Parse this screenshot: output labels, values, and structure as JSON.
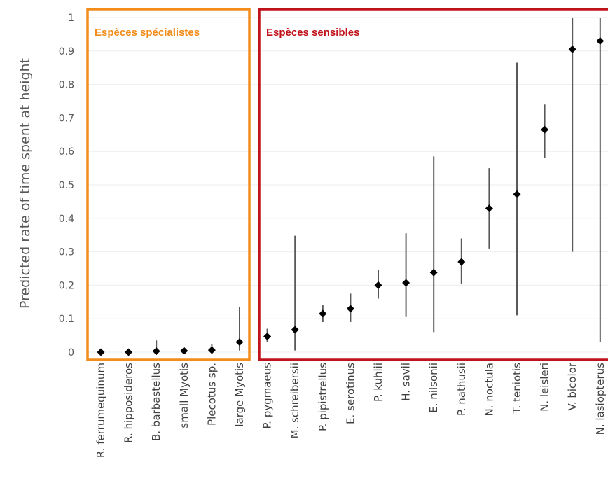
{
  "chart_data": {
    "type": "scatter",
    "title": "",
    "ylabel": "Predicted rate of time spent at height",
    "xlabel": "",
    "ylim": [
      0,
      1
    ],
    "yticks": [
      "0",
      "0.1",
      "0.2",
      "0.3",
      "0.4",
      "0.5",
      "0.6",
      "0.7",
      "0.8",
      "0.9",
      "1"
    ],
    "grid": true,
    "colors": {
      "marker": "#000000",
      "errorbar": "#595959",
      "specialist": "#F28C1A",
      "sensitive": "#C0121B",
      "grid": "#eeeeee"
    },
    "groups": [
      {
        "label": "Espèces spécialistes",
        "from": 0,
        "to": 5
      },
      {
        "label": "Espèces sensibles",
        "from": 6,
        "to": 17
      }
    ],
    "categories": [
      "R. ferrumequinum",
      "R. hipposideros",
      "B. barbastellus",
      "small Myotis",
      "Plecotus sp.",
      "large Myotis",
      "P. pygmaeus",
      "M. schreibersii",
      "P. pipistrellus",
      "E. serotinus",
      "P. kuhlii",
      "H. savii",
      "E. nilsonii",
      "P. nathusii",
      "N. noctula",
      "T. teniotis",
      "N. leisleri",
      "V. bicolor",
      "N. lasiopterus"
    ],
    "values": [
      0.0,
      0.0,
      0.003,
      0.004,
      0.006,
      0.03,
      0.047,
      0.067,
      0.115,
      0.13,
      0.2,
      0.207,
      0.238,
      0.27,
      0.43,
      0.472,
      0.665,
      0.905,
      0.93
    ],
    "lower": [
      0.0,
      0.0,
      0.0,
      0.0,
      0.0,
      0.005,
      0.03,
      0.005,
      0.09,
      0.09,
      0.16,
      0.105,
      0.06,
      0.205,
      0.31,
      0.11,
      0.58,
      0.3,
      0.03
    ],
    "upper": [
      0.0,
      0.003,
      0.035,
      0.008,
      0.025,
      0.135,
      0.07,
      0.348,
      0.14,
      0.175,
      0.245,
      0.355,
      0.585,
      0.34,
      0.55,
      0.865,
      0.74,
      1.0,
      1.0
    ]
  }
}
